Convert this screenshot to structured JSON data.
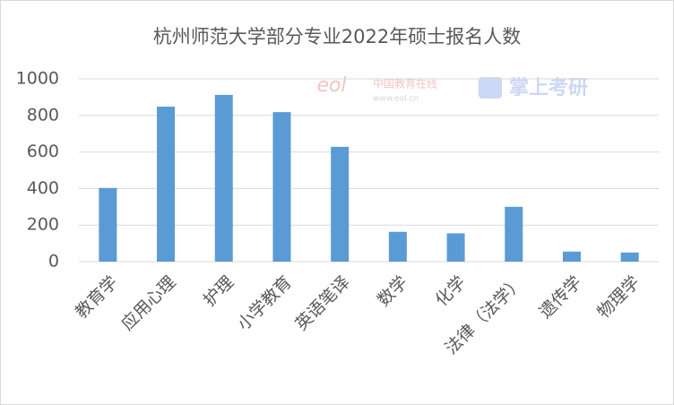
{
  "chart_data": {
    "type": "bar",
    "title": "杭州师范大学部分专业2022年硕士报名人数",
    "categories": [
      "教育学",
      "应用心理",
      "护理",
      "小学教育",
      "英语笔译",
      "数学",
      "化学",
      "法律（法学）",
      "遗传学",
      "物理学"
    ],
    "values": [
      403,
      848,
      912,
      818,
      628,
      163,
      155,
      300,
      55,
      50
    ],
    "color": "#5b9bd5",
    "ylim": [
      0,
      1000
    ],
    "yticks": [
      0,
      200,
      400,
      600,
      800,
      1000
    ],
    "grid": true,
    "watermarks": [
      "eol",
      "中国教育在线",
      "www.eol.cn",
      "掌上考研"
    ]
  }
}
